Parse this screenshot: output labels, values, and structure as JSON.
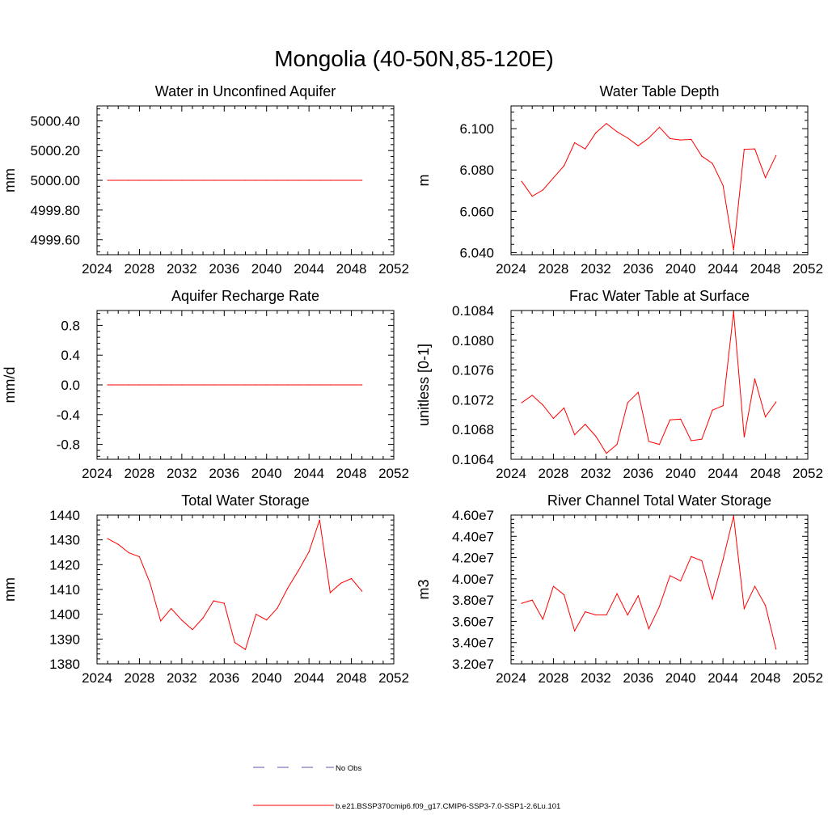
{
  "figure": {
    "title": "Mongolia (40-50N,85-120E)"
  },
  "legend": {
    "entries": [
      {
        "label": "No Obs",
        "color": "#5a5aa8",
        "style": "dashed"
      },
      {
        "label": "b.e21.BSSP370cmip6.f09_g17.CMIP6-SSP3-7.0-SSP1-2.6Lu.101",
        "color": "#ff0000",
        "style": "solid"
      }
    ]
  },
  "chart_data": [
    {
      "type": "line",
      "title": "Water in Unconfined Aquifer",
      "xlabel": "",
      "ylabel": "mm",
      "xlim": [
        2024,
        2052
      ],
      "ylim": [
        4999.5,
        5000.5
      ],
      "xticks": [
        2024,
        2028,
        2032,
        2036,
        2040,
        2044,
        2048,
        2052
      ],
      "yticks": [
        4999.6,
        4999.8,
        5000.0,
        5000.2,
        5000.4
      ],
      "ytick_labels": [
        "4999.60",
        "4999.80",
        "5000.00",
        "5000.20",
        "5000.40"
      ],
      "series": [
        {
          "color": "#ff0000",
          "x": [
            2025,
            2026,
            2027,
            2028,
            2029,
            2030,
            2031,
            2032,
            2033,
            2034,
            2035,
            2036,
            2037,
            2038,
            2039,
            2040,
            2041,
            2042,
            2043,
            2044,
            2045,
            2046,
            2047,
            2048,
            2049
          ],
          "y": [
            5000,
            5000,
            5000,
            5000,
            5000,
            5000,
            5000,
            5000,
            5000,
            5000,
            5000,
            5000,
            5000,
            5000,
            5000,
            5000,
            5000,
            5000,
            5000,
            5000,
            5000,
            5000,
            5000,
            5000,
            5000
          ]
        }
      ]
    },
    {
      "type": "line",
      "title": "Water Table Depth",
      "xlabel": "",
      "ylabel": "m",
      "xlim": [
        2024,
        2052
      ],
      "ylim": [
        6.039,
        6.111
      ],
      "xticks": [
        2024,
        2028,
        2032,
        2036,
        2040,
        2044,
        2048,
        2052
      ],
      "yticks": [
        6.04,
        6.06,
        6.08,
        6.1
      ],
      "ytick_labels": [
        "6.040",
        "6.060",
        "6.080",
        "6.100"
      ],
      "series": [
        {
          "color": "#ff0000",
          "x": [
            2025,
            2026,
            2027,
            2028,
            2029,
            2030,
            2031,
            2032,
            2033,
            2034,
            2035,
            2036,
            2037,
            2038,
            2039,
            2040,
            2041,
            2042,
            2043,
            2044,
            2045,
            2046,
            2047,
            2048,
            2049
          ],
          "y": [
            6.0745,
            6.0673,
            6.0703,
            6.0762,
            6.082,
            6.0932,
            6.0902,
            6.098,
            6.1025,
            6.0985,
            6.0955,
            6.0917,
            6.0955,
            6.1007,
            6.0952,
            6.0945,
            6.0948,
            6.0867,
            6.0832,
            6.0726,
            6.0413,
            6.09,
            6.0902,
            6.0763,
            6.087
          ]
        }
      ]
    },
    {
      "type": "line",
      "title": "Aquifer Recharge Rate",
      "xlabel": "",
      "ylabel": "mm/d",
      "xlim": [
        2024,
        2052
      ],
      "ylim": [
        -1.0,
        1.0
      ],
      "xticks": [
        2024,
        2028,
        2032,
        2036,
        2040,
        2044,
        2048,
        2052
      ],
      "yticks": [
        -0.8,
        -0.4,
        0.0,
        0.4,
        0.8
      ],
      "ytick_labels": [
        "-0.8",
        "-0.4",
        "0.0",
        "0.4",
        "0.8"
      ],
      "series": [
        {
          "color": "#ff0000",
          "x": [
            2025,
            2026,
            2027,
            2028,
            2029,
            2030,
            2031,
            2032,
            2033,
            2034,
            2035,
            2036,
            2037,
            2038,
            2039,
            2040,
            2041,
            2042,
            2043,
            2044,
            2045,
            2046,
            2047,
            2048,
            2049
          ],
          "y": [
            0,
            0,
            0,
            0,
            0,
            0,
            0,
            0,
            0,
            0,
            0,
            0,
            0,
            0,
            0,
            0,
            0,
            0,
            0,
            0,
            0,
            0,
            0,
            0,
            0
          ]
        }
      ]
    },
    {
      "type": "line",
      "title": "Frac Water Table at Surface",
      "xlabel": "",
      "ylabel": "unitless [0-1]",
      "xlim": [
        2024,
        2052
      ],
      "ylim": [
        0.1064,
        0.1084
      ],
      "xticks": [
        2024,
        2028,
        2032,
        2036,
        2040,
        2044,
        2048,
        2052
      ],
      "yticks": [
        0.1064,
        0.1068,
        0.1072,
        0.1076,
        0.108,
        0.1084
      ],
      "ytick_labels": [
        "0.1064",
        "0.1068",
        "0.1072",
        "0.1076",
        "0.1080",
        "0.1084"
      ],
      "series": [
        {
          "color": "#ff0000",
          "x": [
            2025,
            2026,
            2027,
            2028,
            2029,
            2030,
            2031,
            2032,
            2033,
            2034,
            2035,
            2036,
            2037,
            2038,
            2039,
            2040,
            2041,
            2042,
            2043,
            2044,
            2045,
            2046,
            2047,
            2048,
            2049
          ],
          "y": [
            0.10716,
            0.10726,
            0.10713,
            0.10695,
            0.10709,
            0.10673,
            0.10687,
            0.10671,
            0.10648,
            0.1066,
            0.10716,
            0.1073,
            0.10664,
            0.1066,
            0.10693,
            0.10694,
            0.10665,
            0.10667,
            0.10706,
            0.10712,
            0.10838,
            0.1067,
            0.10748,
            0.10697,
            0.10717
          ]
        }
      ]
    },
    {
      "type": "line",
      "title": "Total Water Storage",
      "xlabel": "",
      "ylabel": "mm",
      "xlim": [
        2024,
        2052
      ],
      "ylim": [
        1380,
        1440
      ],
      "xticks": [
        2024,
        2028,
        2032,
        2036,
        2040,
        2044,
        2048,
        2052
      ],
      "yticks": [
        1380,
        1390,
        1400,
        1410,
        1420,
        1430,
        1440
      ],
      "ytick_labels": [
        "1380",
        "1390",
        "1400",
        "1410",
        "1420",
        "1430",
        "1440"
      ],
      "series": [
        {
          "color": "#ff0000",
          "x": [
            2025,
            2026,
            2027,
            2028,
            2029,
            2030,
            2031,
            2032,
            2033,
            2034,
            2035,
            2036,
            2037,
            2038,
            2039,
            2040,
            2041,
            2042,
            2043,
            2044,
            2045,
            2046,
            2047,
            2048,
            2049
          ],
          "y": [
            1430.5,
            1428.2,
            1424.8,
            1423.2,
            1412.6,
            1397.3,
            1402.3,
            1397.6,
            1393.8,
            1398.5,
            1405.4,
            1404.4,
            1388.6,
            1385.8,
            1400.0,
            1397.7,
            1402.4,
            1410.6,
            1417.6,
            1425.2,
            1438.0,
            1408.7,
            1412.5,
            1414.4,
            1409.3
          ]
        }
      ]
    },
    {
      "type": "line",
      "title": "River Channel Total Water Storage",
      "xlabel": "",
      "ylabel": "m3",
      "xlim": [
        2024,
        2052
      ],
      "ylim": [
        32000000,
        46000000
      ],
      "xticks": [
        2024,
        2028,
        2032,
        2036,
        2040,
        2044,
        2048,
        2052
      ],
      "yticks": [
        32000000,
        34000000,
        36000000,
        38000000,
        40000000,
        42000000,
        44000000,
        46000000
      ],
      "ytick_labels": [
        "3.20e7",
        "3.40e7",
        "3.60e7",
        "3.80e7",
        "4.00e7",
        "4.20e7",
        "4.40e7",
        "4.60e7"
      ],
      "series": [
        {
          "color": "#ff0000",
          "x": [
            2025,
            2026,
            2027,
            2028,
            2029,
            2030,
            2031,
            2032,
            2033,
            2034,
            2035,
            2036,
            2037,
            2038,
            2039,
            2040,
            2041,
            2042,
            2043,
            2044,
            2045,
            2046,
            2047,
            2048,
            2049
          ],
          "y": [
            37700000,
            38000000,
            36200000,
            39300000,
            38500000,
            35100000,
            36900000,
            36600000,
            36600000,
            38600000,
            36600000,
            38400000,
            35300000,
            37400000,
            40300000,
            39800000,
            42100000,
            41700000,
            38100000,
            41800000,
            45900000,
            37200000,
            39300000,
            37500000,
            33400000
          ]
        }
      ]
    }
  ]
}
